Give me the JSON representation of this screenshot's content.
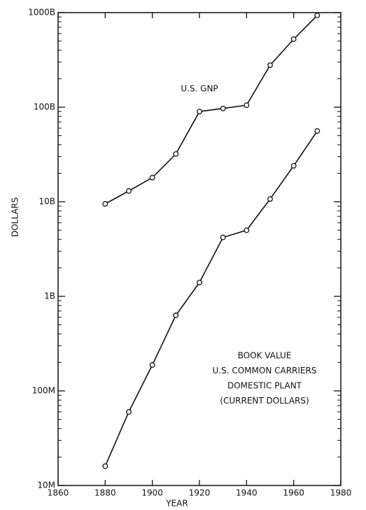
{
  "chart_data": {
    "type": "line",
    "x": [
      1880,
      1890,
      1900,
      1910,
      1920,
      1930,
      1940,
      1950,
      1960,
      1970
    ],
    "series": [
      {
        "color": "#111111",
        "values": [
          9500000000.0,
          13000000000.0,
          18000000000.0,
          32000000000.0,
          90000000000.0,
          97000000000.0,
          105000000000.0,
          278000000000.0,
          524000000000.0,
          935000000000.0
        ]
      },
      {
        "color": "#111111",
        "values": [
          16000000.0,
          60000000.0,
          188000000.0,
          630000000.0,
          1400000000.0,
          4200000000.0,
          5000000000.0,
          10700000000.0,
          24000000000.0,
          56000000000.0
        ]
      }
    ],
    "xlim": [
      1860,
      1980
    ],
    "xticks": [
      1860,
      1880,
      1900,
      1920,
      1940,
      1960,
      1980
    ],
    "ylim": [
      10000000.0,
      1000000000000.0
    ],
    "yticks": [
      {
        "value": 10000000.0,
        "label": "10M"
      },
      {
        "value": 100000000.0,
        "label": "100M"
      },
      {
        "value": 1000000000.0,
        "label": "1B"
      },
      {
        "value": 10000000000.0,
        "label": "10B"
      },
      {
        "value": 100000000000.0,
        "label": "100B"
      },
      {
        "value": 1000000000000.0,
        "label": "1000B"
      }
    ],
    "y_scale": "log",
    "x_label": "YEAR",
    "y_label": "DOLLARS",
    "annotations": [
      {
        "lines": [
          "U.S. GNP"
        ]
      },
      {
        "lines": [
          "BOOK VALUE",
          "U.S. COMMON CARRIERS",
          "DOMESTIC PLANT",
          "(CURRENT DOLLARS)"
        ]
      }
    ]
  }
}
